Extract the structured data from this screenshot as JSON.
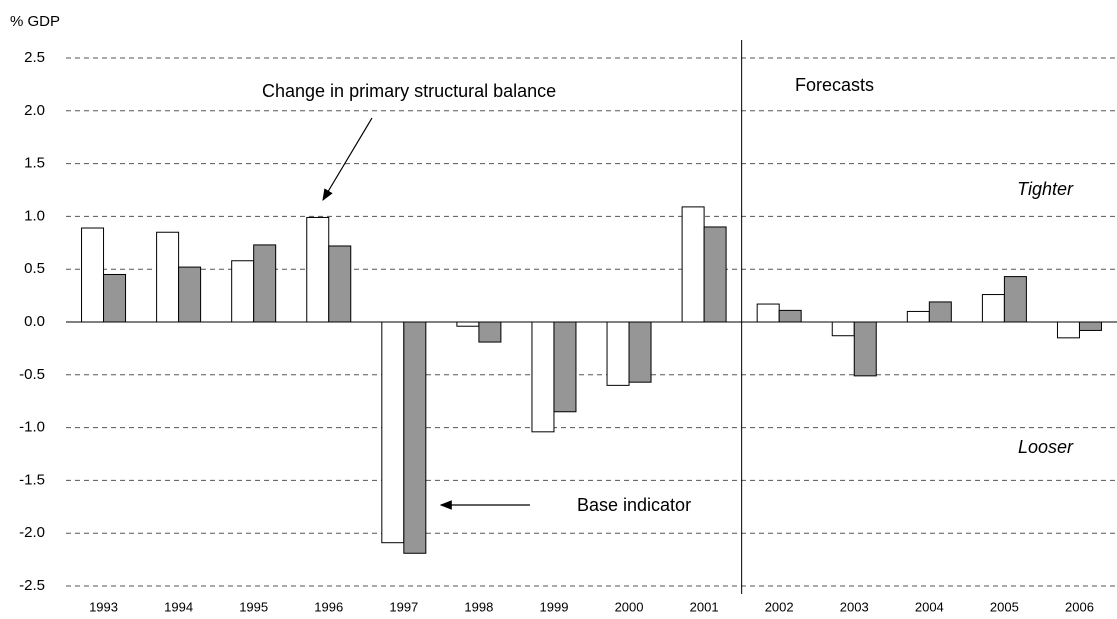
{
  "chart_data": {
    "type": "bar",
    "y_label": "% GDP",
    "categories": [
      "1993",
      "1994",
      "1995",
      "1996",
      "1997",
      "1998",
      "1999",
      "2000",
      "2001",
      "2002",
      "2003",
      "2004",
      "2005",
      "2006"
    ],
    "series": [
      {
        "name": "Change in primary structural balance",
        "color": "#ffffff",
        "values": [
          0.89,
          0.85,
          0.58,
          0.99,
          -2.09,
          -0.04,
          -1.04,
          -0.6,
          1.09,
          0.17,
          -0.13,
          0.1,
          0.26,
          -0.15
        ]
      },
      {
        "name": "Base indicator",
        "color": "#969696",
        "values": [
          0.45,
          0.52,
          0.73,
          0.72,
          -2.19,
          -0.19,
          -0.85,
          -0.57,
          0.9,
          0.11,
          -0.51,
          0.19,
          0.43,
          -0.08
        ]
      }
    ],
    "annotations": {
      "forecasts": "Forecasts",
      "tighter": "Tighter",
      "looser": "Looser"
    },
    "ylim": [
      -2.5,
      2.5
    ],
    "yticks": [
      2.5,
      {
        "value": 2,
        "label": "2.0"
      },
      1.5,
      {
        "value": 1,
        "label": "1.0"
      },
      0.5,
      {
        "value": 0,
        "label": "0.0"
      },
      -0.5,
      {
        "value": -1,
        "label": "-1.0"
      },
      -1.5,
      {
        "value": -2,
        "label": "-2.0"
      },
      -2.5
    ],
    "grid": true
  }
}
